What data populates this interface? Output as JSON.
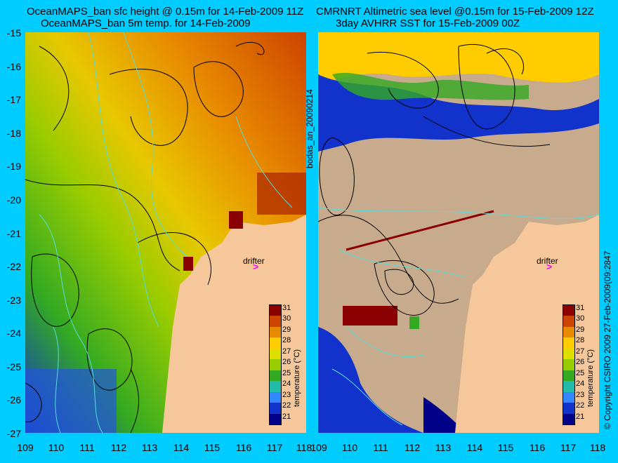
{
  "left_panel": {
    "title_line1": "OceanMAPS_ban sfc height @ 0.15m for 14-Feb-2009 11Z",
    "title_line2": "OceanMAPS_ban 5m temp. for 14-Feb-2009",
    "drifter_label": "drifter",
    "drifter_icon": "magenta-arrow-icon",
    "side_label": "bodas_an_20090214",
    "colorbar_title": "temperature (°C)"
  },
  "right_panel": {
    "title_line1": "CMRNRT Altimetric sea level  @0.15m  for 15-Feb-2009 12Z",
    "title_line2": "3day AVHRR SST for 15-Feb-2009 00Z",
    "drifter_label": "drifter",
    "drifter_icon": "magenta-arrow-icon",
    "side_label": "© Copyright CSIRO 2009   27-Feb-2009(09:2847",
    "colorbar_title": "temperature (°C)"
  },
  "axes": {
    "y_ticks": [
      "-15",
      "-16",
      "-17",
      "-18",
      "-19",
      "-20",
      "-21",
      "-22",
      "-23",
      "-24",
      "-25",
      "-26",
      "-27"
    ],
    "x_ticks": [
      "109",
      "110",
      "111",
      "112",
      "113",
      "114",
      "115",
      "116",
      "117",
      "118"
    ]
  },
  "colorbar": {
    "ticks": [
      "31",
      "30",
      "29",
      "28",
      "27",
      "26",
      "25",
      "24",
      "23",
      "22",
      "21"
    ],
    "colors": [
      "#8b0000",
      "#cc4400",
      "#e88a00",
      "#ffcc00",
      "#e0e000",
      "#99cc00",
      "#33aa22",
      "#22bbaa",
      "#3388ff",
      "#1133cc",
      "#000088"
    ]
  },
  "colors": {
    "background": "#00ccff",
    "land": "#f5c79a",
    "cloud_land": "#c8aa8c",
    "contour": "#000000",
    "bathymetry": "#55dddd",
    "drifter": "#ff00ff"
  }
}
